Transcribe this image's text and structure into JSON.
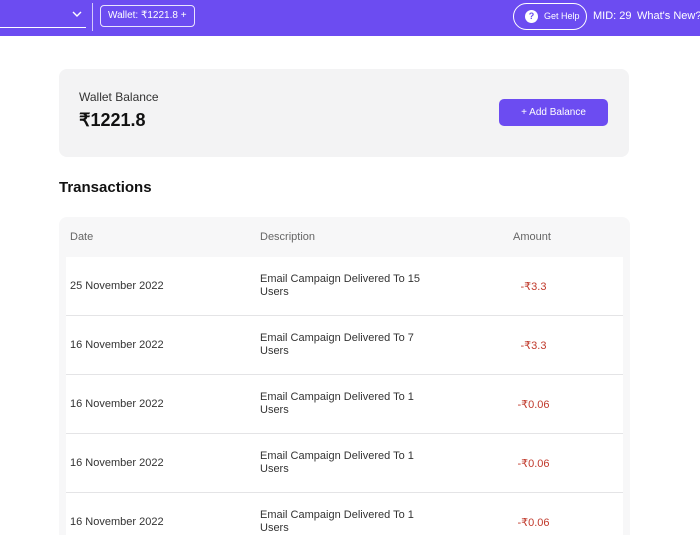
{
  "colors": {
    "brand": "#6c4cf1",
    "negative_amount": "#c0392b"
  },
  "topbar": {
    "store_select_icon": "chevron-down-icon",
    "wallet_chip": "Wallet: ₹1221.8 +",
    "help_icon": "question-circle-icon",
    "help_label": "Get Help",
    "mid": "MID: 29",
    "whats_new": "What's New?"
  },
  "wallet": {
    "label": "Wallet Balance",
    "amount": "₹1221.8",
    "add_button": "+ Add Balance"
  },
  "transactions": {
    "title": "Transactions",
    "headers": {
      "date": "Date",
      "description": "Description",
      "amount": "Amount"
    },
    "rows": [
      {
        "date": "25 November 2022",
        "description": "Email Campaign Delivered To 15 Users",
        "amount": "-₹3.3"
      },
      {
        "date": "16 November 2022",
        "description": "Email Campaign Delivered To 7 Users",
        "amount": "-₹3.3"
      },
      {
        "date": "16 November 2022",
        "description": "Email Campaign Delivered To 1 Users",
        "amount": "-₹0.06"
      },
      {
        "date": "16 November 2022",
        "description": "Email Campaign Delivered To 1 Users",
        "amount": "-₹0.06"
      },
      {
        "date": "16 November 2022",
        "description": "Email Campaign Delivered To 1 Users",
        "amount": "-₹0.06"
      }
    ]
  }
}
